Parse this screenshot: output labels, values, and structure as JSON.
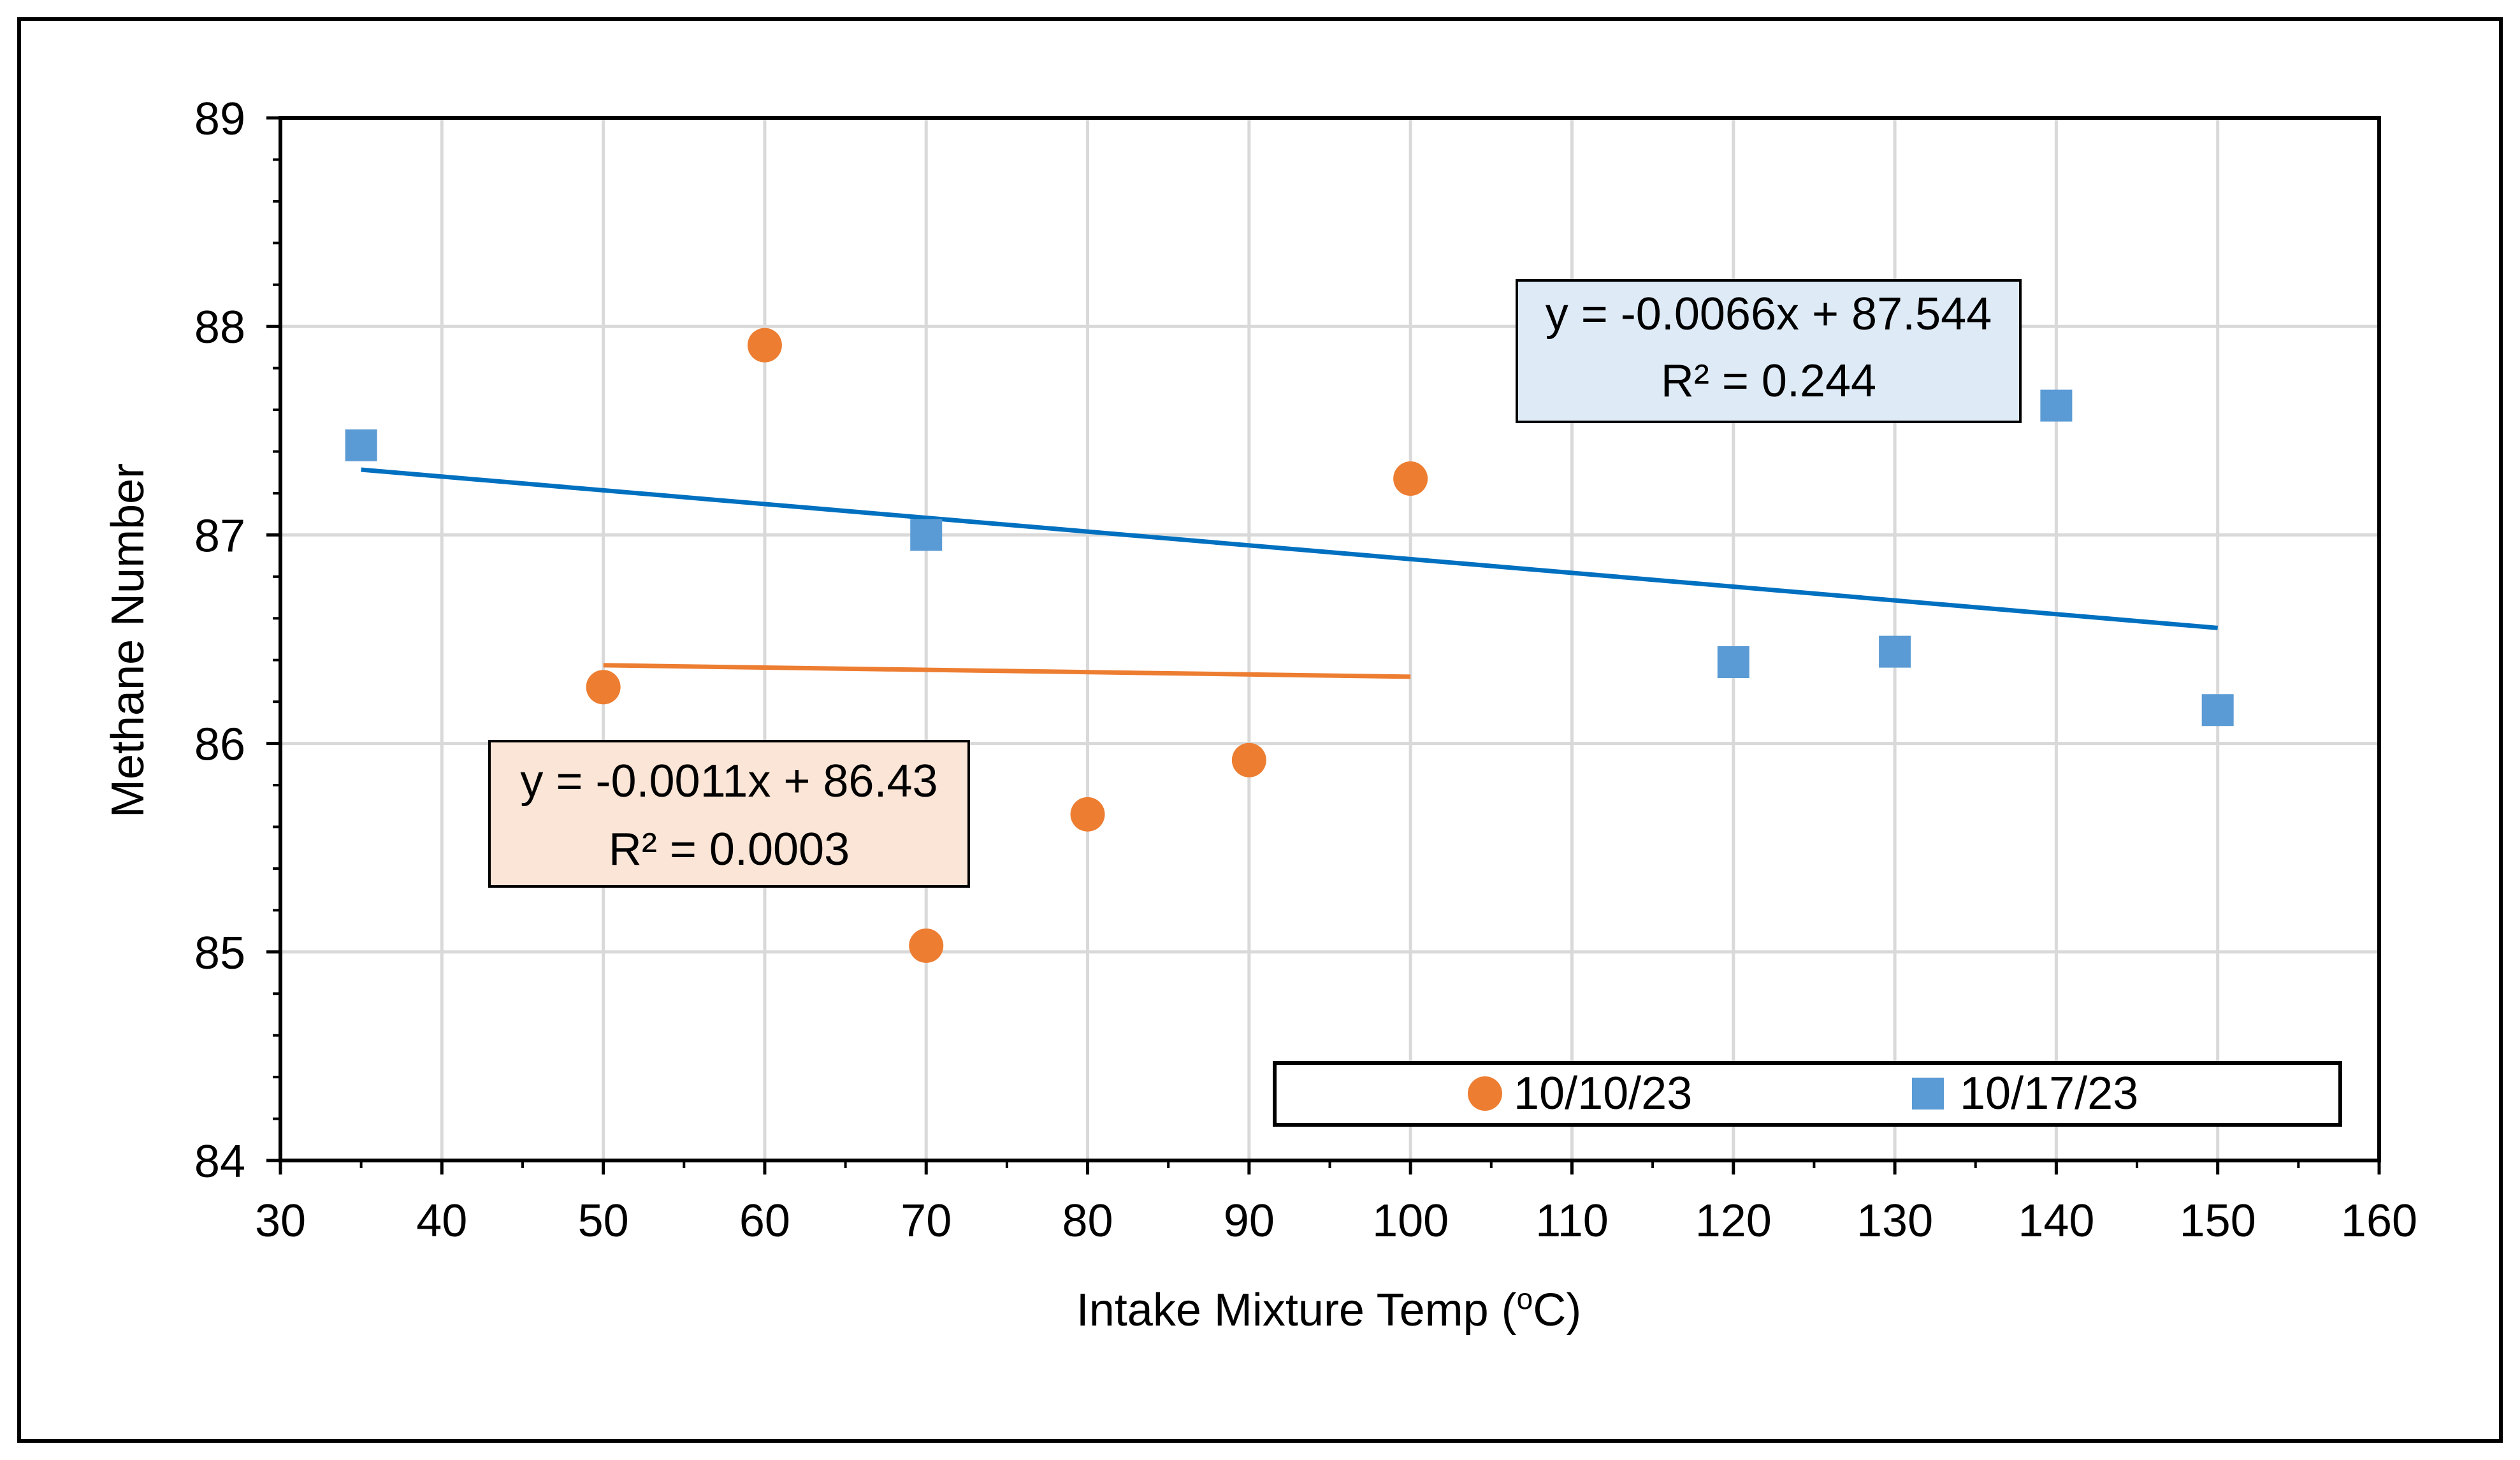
{
  "chart_data": {
    "type": "scatter",
    "xlabel_main": "Intake Mixture Temp (",
    "xlabel_sup": "o",
    "xlabel_tail": "C)",
    "ylabel": "Methane Number",
    "xlim": [
      30,
      160
    ],
    "ylim": [
      84,
      89
    ],
    "x_ticks": [
      "30",
      "40",
      "50",
      "60",
      "70",
      "80",
      "90",
      "100",
      "110",
      "120",
      "130",
      "140",
      "150",
      "160"
    ],
    "y_ticks": [
      "84",
      "85",
      "86",
      "87",
      "88",
      "89"
    ],
    "grid": true,
    "legend_position": "bottom-right",
    "series": [
      {
        "name": "10/10/23",
        "marker": "circle",
        "color": "#ED7D31",
        "x": [
          50,
          60,
          70,
          80,
          90,
          100
        ],
        "y": [
          86.27,
          87.91,
          85.03,
          85.66,
          85.92,
          87.27
        ],
        "trendline": {
          "x_range": [
            50,
            100
          ],
          "slope": -0.0011,
          "intercept": 86.43,
          "equation": "y = -0.0011x + 86.43",
          "r2": "R² = 0.0003",
          "box_fill": "#FBE5D6"
        }
      },
      {
        "name": "10/17/23",
        "marker": "square",
        "color": "#5B9BD5",
        "x": [
          35,
          70,
          120,
          130,
          140,
          150
        ],
        "y": [
          87.43,
          87.0,
          86.39,
          86.44,
          87.62,
          86.16
        ],
        "trendline": {
          "x_range": [
            35,
            150
          ],
          "slope": -0.0066,
          "intercept": 87.544,
          "equation": "y = -0.0066x + 87.544",
          "r2": "R² = 0.244",
          "box_fill": "#DEEBF7",
          "line_color": "#0070C0"
        }
      }
    ]
  }
}
